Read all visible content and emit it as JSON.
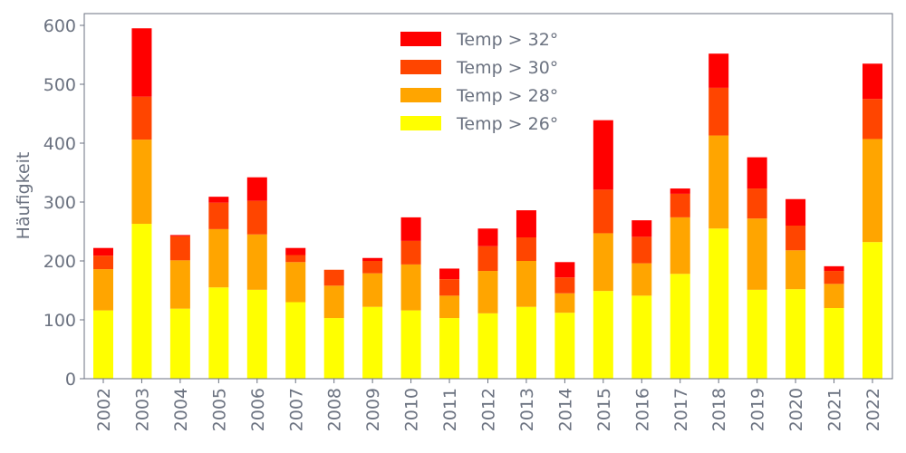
{
  "chart_data": {
    "type": "bar",
    "stacked": true,
    "categories": [
      "2002",
      "2003",
      "2004",
      "2005",
      "2006",
      "2007",
      "2008",
      "2009",
      "2010",
      "2011",
      "2012",
      "2013",
      "2014",
      "2015",
      "2016",
      "2017",
      "2018",
      "2019",
      "2020",
      "2021",
      "2022"
    ],
    "series": [
      {
        "name": "Temp > 26°",
        "color": "#ffff00",
        "values": [
          116,
          263,
          119,
          155,
          151,
          130,
          103,
          122,
          116,
          103,
          111,
          122,
          112,
          149,
          141,
          178,
          255,
          151,
          152,
          120,
          232
        ]
      },
      {
        "name": "Temp > 28°",
        "color": "#ffa500",
        "values": [
          70,
          143,
          82,
          99,
          94,
          68,
          55,
          57,
          78,
          38,
          72,
          78,
          33,
          98,
          55,
          96,
          158,
          121,
          66,
          41,
          175
        ]
      },
      {
        "name": "Temp > 30°",
        "color": "#ff4500",
        "values": [
          23,
          73,
          41,
          45,
          57,
          12,
          27,
          21,
          40,
          28,
          42,
          40,
          27,
          74,
          45,
          40,
          81,
          51,
          42,
          22,
          68
        ]
      },
      {
        "name": "Temp > 32°",
        "color": "#ff0000",
        "values": [
          13,
          116,
          2,
          10,
          40,
          12,
          0,
          5,
          40,
          18,
          30,
          46,
          26,
          118,
          28,
          9,
          58,
          53,
          45,
          8,
          60
        ]
      }
    ],
    "legend_order": [
      3,
      2,
      1,
      0
    ],
    "xlabel": "",
    "ylabel": "Häufigkeit",
    "ylim": [
      0,
      620
    ],
    "yticks": [
      0,
      100,
      200,
      300,
      400,
      500,
      600
    ],
    "grid": false,
    "legend_position": "top-center"
  }
}
